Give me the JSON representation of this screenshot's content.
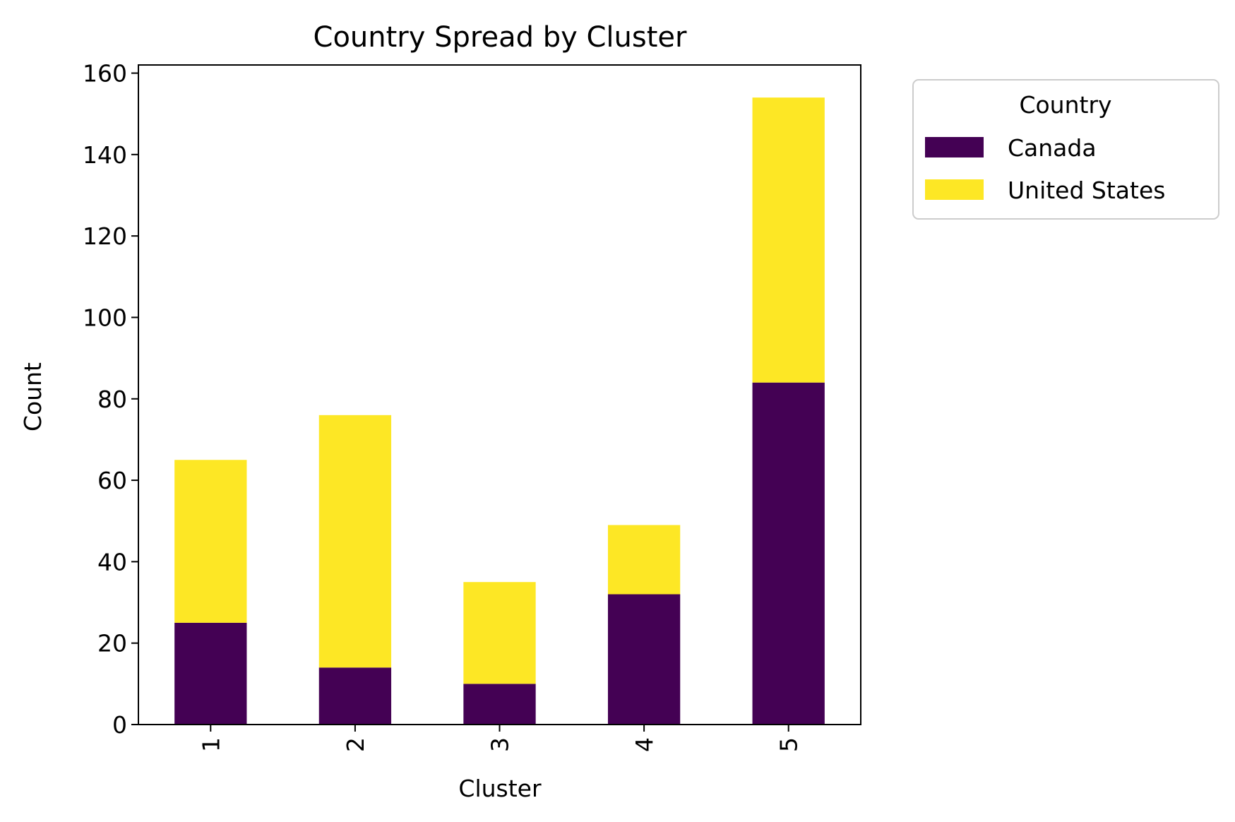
{
  "chart_data": {
    "type": "bar",
    "stacked": true,
    "title": "Country Spread by Cluster",
    "xlabel": "Cluster",
    "ylabel": "Count",
    "categories": [
      "1",
      "2",
      "3",
      "4",
      "5"
    ],
    "series": [
      {
        "name": "Canada",
        "values": [
          25,
          14,
          10,
          32,
          84
        ],
        "color": "#440154"
      },
      {
        "name": "United States",
        "values": [
          40,
          62,
          25,
          17,
          70
        ],
        "color": "#fde725"
      }
    ],
    "ylim": [
      0,
      162
    ],
    "yticks": [
      0,
      20,
      40,
      60,
      80,
      100,
      120,
      140,
      160
    ],
    "x_tick_rotation_deg": 90,
    "grid": false,
    "legend": {
      "title": "Country",
      "placement": "outside-top-right"
    }
  }
}
